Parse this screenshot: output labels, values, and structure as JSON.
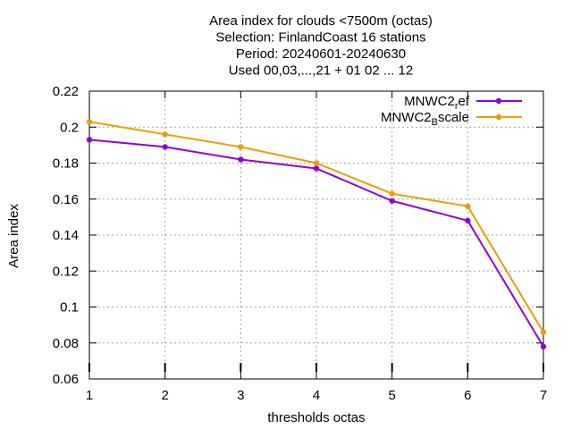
{
  "chart_data": {
    "type": "line",
    "title_lines": [
      "Area index  for clouds <7500m (octas)",
      "Selection: FinlandCoast      16 stations",
      "Period: 20240601-20240630",
      "Used 00,03,...,21 + 01 02 ... 12"
    ],
    "xlabel": "thresholds octas",
    "ylabel": "Area index",
    "x": [
      1,
      2,
      3,
      4,
      5,
      6,
      7
    ],
    "xlim": [
      1,
      7
    ],
    "ylim": [
      0.06,
      0.22
    ],
    "xticks": [
      "1",
      "2",
      "3",
      "4",
      "5",
      "6",
      "7"
    ],
    "yticks": [
      "0.06",
      "0.08",
      "0.1",
      "0.12",
      "0.14",
      "0.16",
      "0.18",
      "0.2",
      "0.22"
    ],
    "grid": true,
    "legend_position": "top-right",
    "series": [
      {
        "name": "MNWC2_ref",
        "legend_main": "MNWC2",
        "legend_sub": "r",
        "legend_tail": "ef",
        "color": "#9400d3",
        "values": [
          0.193,
          0.189,
          0.182,
          0.177,
          0.159,
          0.148,
          0.078
        ]
      },
      {
        "name": "MNWC2_Bscale",
        "legend_main": "MNWC2",
        "legend_sub": "B",
        "legend_tail": "scale",
        "color": "#e69f00",
        "values": [
          0.203,
          0.196,
          0.189,
          0.18,
          0.163,
          0.156,
          0.086
        ]
      }
    ]
  }
}
